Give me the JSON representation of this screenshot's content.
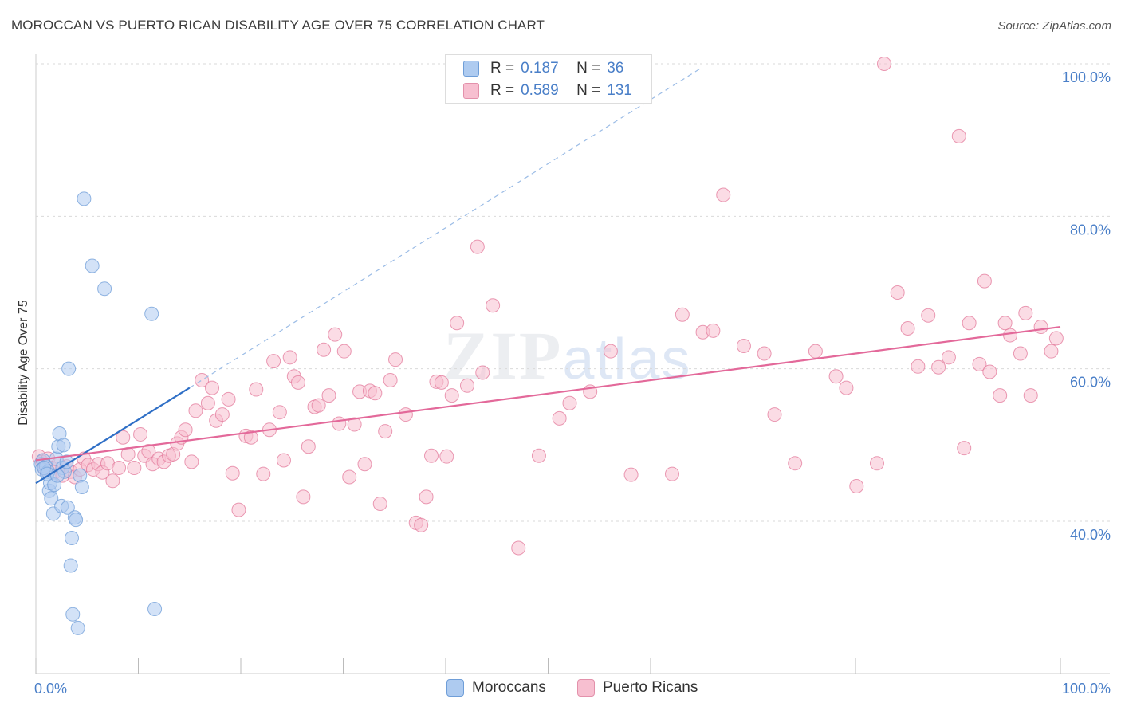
{
  "header": {
    "title": "MOROCCAN VS PUERTO RICAN DISABILITY AGE OVER 75 CORRELATION CHART",
    "source": "Source: ZipAtlas.com"
  },
  "watermark": {
    "zip": "ZIP",
    "atlas": "atlas"
  },
  "legend": {
    "rows": [
      {
        "r_label": "R =",
        "r_value": "0.187",
        "n_label": "N =",
        "n_value": "36",
        "color": "#aecbf0",
        "border": "#6f9ed8"
      },
      {
        "r_label": "R =",
        "r_value": "0.589",
        "n_label": "N =",
        "n_value": "131",
        "color": "#f7bfd0",
        "border": "#e391ab"
      }
    ]
  },
  "bottom_legend": {
    "items": [
      {
        "label": "Moroccans",
        "color": "#aecbf0",
        "border": "#6f9ed8"
      },
      {
        "label": "Puerto Ricans",
        "color": "#f7bfd0",
        "border": "#e391ab"
      }
    ]
  },
  "chart_data": {
    "type": "scatter",
    "title": "MOROCCAN VS PUERTO RICAN DISABILITY AGE OVER 75 CORRELATION CHART",
    "xlabel": "",
    "ylabel": "Disability Age Over 75",
    "xlim": [
      0,
      100
    ],
    "ylim": [
      20,
      101
    ],
    "x_tick_labels": [
      "0.0%",
      "100.0%"
    ],
    "y_ticks": [
      40,
      60,
      80,
      100
    ],
    "y_tick_labels": [
      "40.0%",
      "60.0%",
      "80.0%",
      "100.0%"
    ],
    "grid": true,
    "series": [
      {
        "name": "Moroccans",
        "color": "#6f9ed8",
        "fill": "#aecbf0",
        "trend": {
          "x0": 0,
          "y0": 45.0,
          "x1": 15,
          "y1": 57.5,
          "extend_to": [
            65,
            99.5
          ]
        },
        "points": [
          [
            0.5,
            47.5
          ],
          [
            0.7,
            48
          ],
          [
            0.6,
            46.8
          ],
          [
            1,
            47.2
          ],
          [
            1.2,
            46.5
          ],
          [
            1.3,
            44
          ],
          [
            1.5,
            43
          ],
          [
            1.4,
            45
          ],
          [
            1.7,
            41
          ],
          [
            1.8,
            44.8
          ],
          [
            2,
            48.2
          ],
          [
            2.2,
            49.8
          ],
          [
            2.3,
            51.5
          ],
          [
            2.5,
            42
          ],
          [
            2.6,
            47
          ],
          [
            2.7,
            50
          ],
          [
            2.8,
            46.5
          ],
          [
            3,
            47.8
          ],
          [
            3.1,
            41.8
          ],
          [
            3.2,
            60
          ],
          [
            3.4,
            34.2
          ],
          [
            3.5,
            37.8
          ],
          [
            3.6,
            27.8
          ],
          [
            3.8,
            40.5
          ],
          [
            3.9,
            40.2
          ],
          [
            4.1,
            26
          ],
          [
            4.3,
            46
          ],
          [
            4.5,
            44.5
          ],
          [
            4.7,
            82.3
          ],
          [
            5.5,
            73.5
          ],
          [
            6.7,
            70.5
          ],
          [
            11.3,
            67.2
          ],
          [
            11.6,
            28.5
          ],
          [
            0.8,
            47
          ],
          [
            1.1,
            46.2
          ],
          [
            2.1,
            46
          ]
        ]
      },
      {
        "name": "Puerto Ricans",
        "color": "#e3799b",
        "fill": "#f7bfd0",
        "trend": {
          "x0": 0,
          "y0": 48.0,
          "x1": 100,
          "y1": 65.5
        },
        "points": [
          [
            0.3,
            48.5
          ],
          [
            0.6,
            47.8
          ],
          [
            0.9,
            46.8
          ],
          [
            1.2,
            48.2
          ],
          [
            1.5,
            47
          ],
          [
            1.8,
            46.4
          ],
          [
            2.2,
            47.5
          ],
          [
            2.6,
            46
          ],
          [
            3,
            47.2
          ],
          [
            3.4,
            46.5
          ],
          [
            3.8,
            45.8
          ],
          [
            4.3,
            46.8
          ],
          [
            4.7,
            48.2
          ],
          [
            5.1,
            47.4
          ],
          [
            5.6,
            46.8
          ],
          [
            6.1,
            47.5
          ],
          [
            6.5,
            46.4
          ],
          [
            7,
            47.6
          ],
          [
            7.5,
            45.3
          ],
          [
            8.1,
            47
          ],
          [
            8.5,
            51
          ],
          [
            9,
            48.8
          ],
          [
            9.6,
            47
          ],
          [
            10.2,
            51.4
          ],
          [
            10.6,
            48.6
          ],
          [
            11,
            49.2
          ],
          [
            11.4,
            47.5
          ],
          [
            12,
            48.2
          ],
          [
            12.5,
            47.8
          ],
          [
            13,
            48.6
          ],
          [
            13.4,
            48.8
          ],
          [
            13.8,
            50.2
          ],
          [
            14.2,
            51
          ],
          [
            14.6,
            52
          ],
          [
            15.2,
            47.8
          ],
          [
            15.6,
            54.5
          ],
          [
            16.2,
            58.5
          ],
          [
            16.8,
            55.5
          ],
          [
            17.2,
            57.5
          ],
          [
            17.6,
            53.2
          ],
          [
            18.2,
            54
          ],
          [
            18.8,
            56
          ],
          [
            19.2,
            46.3
          ],
          [
            19.8,
            41.5
          ],
          [
            20.5,
            51.2
          ],
          [
            21,
            51
          ],
          [
            21.5,
            57.3
          ],
          [
            22.2,
            46.2
          ],
          [
            22.8,
            52
          ],
          [
            23.2,
            61
          ],
          [
            23.8,
            54.3
          ],
          [
            24.2,
            48
          ],
          [
            24.8,
            61.5
          ],
          [
            25.2,
            59
          ],
          [
            25.6,
            58.2
          ],
          [
            26.1,
            43.2
          ],
          [
            26.6,
            49.8
          ],
          [
            27.2,
            55
          ],
          [
            27.6,
            55.2
          ],
          [
            28.1,
            62.5
          ],
          [
            28.6,
            56.5
          ],
          [
            29.2,
            64.5
          ],
          [
            29.6,
            52.8
          ],
          [
            30.1,
            62.3
          ],
          [
            30.6,
            45.8
          ],
          [
            31.1,
            52.7
          ],
          [
            31.6,
            57
          ],
          [
            32.1,
            47.5
          ],
          [
            32.6,
            57.1
          ],
          [
            33.1,
            56.8
          ],
          [
            33.6,
            42.3
          ],
          [
            34.1,
            51.8
          ],
          [
            34.6,
            58.5
          ],
          [
            35.1,
            61.2
          ],
          [
            36.1,
            54
          ],
          [
            37.1,
            39.8
          ],
          [
            37.6,
            39.5
          ],
          [
            38.1,
            43.2
          ],
          [
            38.6,
            48.6
          ],
          [
            39.1,
            58.3
          ],
          [
            39.6,
            58.2
          ],
          [
            40.1,
            48.5
          ],
          [
            40.6,
            56.5
          ],
          [
            41.1,
            66
          ],
          [
            42.1,
            57.8
          ],
          [
            43.1,
            76
          ],
          [
            43.6,
            59.5
          ],
          [
            44.6,
            68.3
          ],
          [
            47.1,
            36.5
          ],
          [
            49.1,
            48.6
          ],
          [
            51.1,
            53.5
          ],
          [
            52.1,
            55.5
          ],
          [
            54.1,
            57
          ],
          [
            56.1,
            62.3
          ],
          [
            58.1,
            46.1
          ],
          [
            62.1,
            46.2
          ],
          [
            63.1,
            67.1
          ],
          [
            65.1,
            64.8
          ],
          [
            66.1,
            65
          ],
          [
            67.1,
            82.8
          ],
          [
            69.1,
            63
          ],
          [
            71.1,
            62
          ],
          [
            72.1,
            54
          ],
          [
            74.1,
            47.6
          ],
          [
            76.1,
            62.3
          ],
          [
            78.1,
            59
          ],
          [
            79.1,
            57.5
          ],
          [
            80.1,
            44.6
          ],
          [
            82.1,
            47.6
          ],
          [
            84.1,
            70
          ],
          [
            85.1,
            65.3
          ],
          [
            86.1,
            60.3
          ],
          [
            87.1,
            67
          ],
          [
            88.1,
            60.2
          ],
          [
            89.1,
            61.5
          ],
          [
            90.1,
            90.5
          ],
          [
            91.1,
            66
          ],
          [
            92.1,
            60.6
          ],
          [
            93.1,
            59.6
          ],
          [
            94.1,
            56.5
          ],
          [
            95.1,
            64.4
          ],
          [
            96.1,
            62
          ],
          [
            97.1,
            56.5
          ],
          [
            98.1,
            65.5
          ],
          [
            99.1,
            62.3
          ],
          [
            99.6,
            64
          ],
          [
            82.8,
            100
          ],
          [
            90.6,
            49.6
          ],
          [
            92.6,
            71.5
          ],
          [
            94.6,
            66
          ],
          [
            96.6,
            67.3
          ]
        ]
      }
    ]
  }
}
